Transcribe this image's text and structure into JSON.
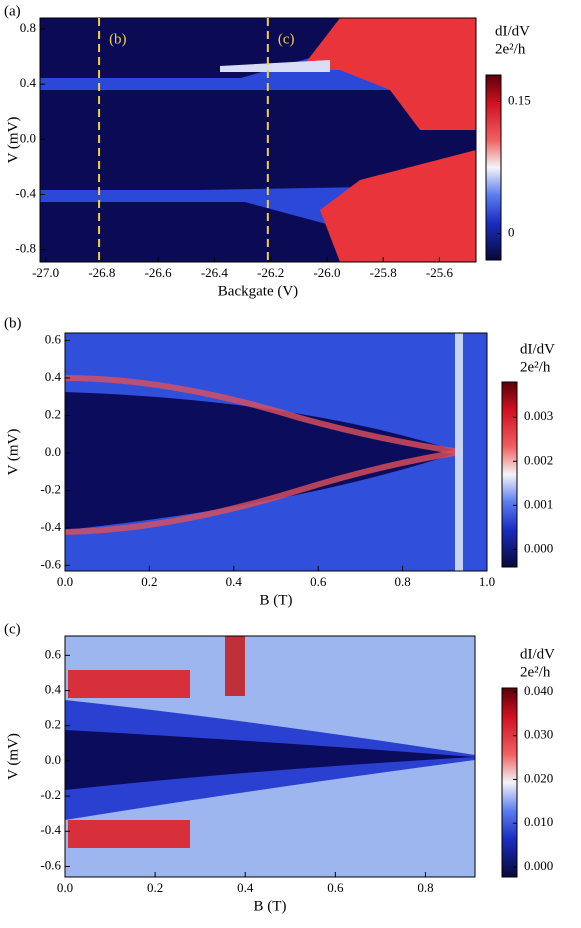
{
  "chart_data": [
    {
      "type": "heatmap",
      "panel_label": "(a)",
      "xlabel": "Backgate (V)",
      "ylabel": "V (mV)",
      "xlim": [
        -27.02,
        -25.47
      ],
      "ylim": [
        -0.89,
        0.88
      ],
      "xticks": [
        {
          "value": -27.0,
          "label": "-27.0"
        },
        -26.8,
        -26.6,
        -26.4,
        -26.2,
        {
          "value": -26.0,
          "label": "-26.0"
        },
        -25.8,
        -25.6
      ],
      "yticks": [
        0.8,
        0.4,
        {
          "value": 0,
          "label": "0.0"
        },
        -0.4,
        -0.8
      ],
      "markers": [
        {
          "x": -26.81,
          "label": "(b)"
        },
        {
          "x": -26.21,
          "label": "(c)"
        }
      ],
      "colorbar_label": [
        "dI/dV",
        "2e²/h"
      ],
      "clim": [
        -0.03,
        0.18
      ],
      "cticks": [
        0.15,
        0
      ]
    },
    {
      "type": "heatmap",
      "panel_label": "(b)",
      "xlabel": "B (T)",
      "ylabel": "V  (mV)",
      "xlim": [
        0,
        1.0
      ],
      "ylim": [
        -0.63,
        0.64
      ],
      "xticks": [
        {
          "value": 0,
          "label": "0.0"
        },
        0.2,
        0.4,
        0.6,
        0.8,
        {
          "value": 1,
          "label": "1.0"
        }
      ],
      "yticks": [
        0.6,
        0.4,
        0.2,
        {
          "value": 0,
          "label": "0.0"
        },
        -0.2,
        -0.4,
        -0.6
      ],
      "colorbar_label": [
        "dI/dV",
        "2e²/h"
      ],
      "clim": [
        -0.0004,
        0.0038
      ],
      "cticks": [
        0.003,
        0.002,
        0.001,
        {
          "value": 0,
          "label": "0.000"
        }
      ]
    },
    {
      "type": "heatmap",
      "panel_label": "(c)",
      "xlabel": "B (T)",
      "ylabel": "V  (mV)",
      "xlim": [
        0,
        0.91
      ],
      "ylim": [
        -0.66,
        0.71
      ],
      "xticks": [
        {
          "value": 0,
          "label": "0.0"
        },
        0.2,
        0.4,
        0.6,
        0.8
      ],
      "yticks": [
        0.6,
        0.4,
        0.2,
        {
          "value": 0,
          "label": "0.0"
        },
        -0.2,
        -0.4,
        -0.6
      ],
      "colorbar_label": [
        "dI/dV",
        "2e²/h"
      ],
      "clim": [
        -0.0023,
        0.0409
      ],
      "cticks": [
        {
          "value": 0.04,
          "label": "0.040"
        },
        {
          "value": 0.03,
          "label": "0.030"
        },
        {
          "value": 0.02,
          "label": "0.020"
        },
        {
          "value": 0.01,
          "label": "0.010"
        },
        {
          "value": 0,
          "label": "0.000"
        }
      ]
    }
  ]
}
